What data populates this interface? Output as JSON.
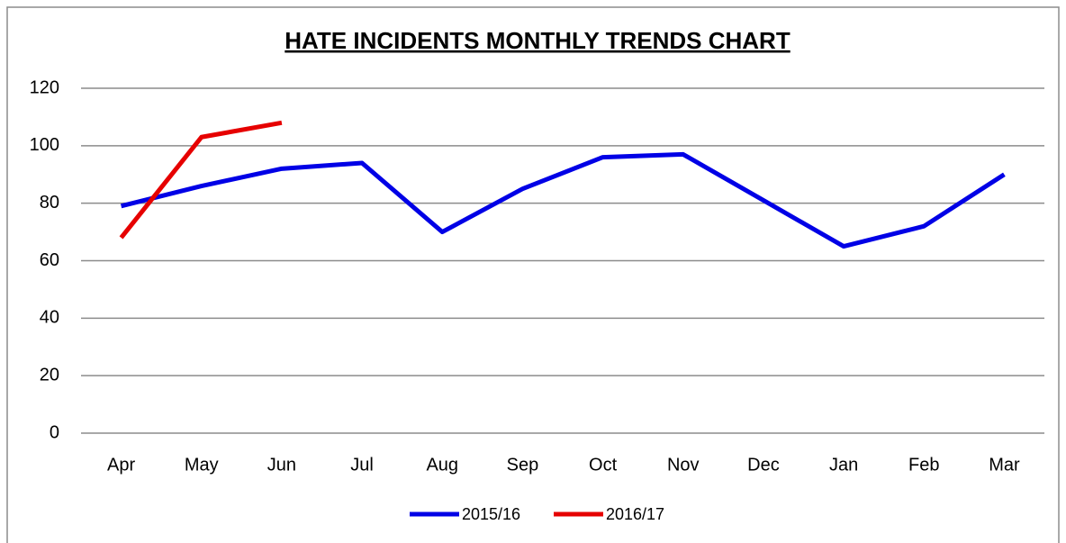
{
  "chart_data": {
    "type": "line",
    "title": "HATE INCIDENTS MONTHLY TRENDS CHART",
    "categories": [
      "Apr",
      "May",
      "Jun",
      "Jul",
      "Aug",
      "Sep",
      "Oct",
      "Nov",
      "Dec",
      "Jan",
      "Feb",
      "Mar"
    ],
    "series": [
      {
        "name": "2015/16",
        "color": "#0000e6",
        "values": [
          79,
          86,
          92,
          94,
          70,
          85,
          96,
          97,
          81,
          65,
          72,
          90
        ]
      },
      {
        "name": "2016/17",
        "color": "#e60000",
        "values": [
          68,
          103,
          108,
          null,
          null,
          null,
          null,
          null,
          null,
          null,
          null,
          null
        ]
      }
    ],
    "ylim": [
      0,
      120
    ],
    "yticks": [
      0,
      20,
      40,
      60,
      80,
      100,
      120
    ],
    "grid": true,
    "legend": "bottom"
  }
}
